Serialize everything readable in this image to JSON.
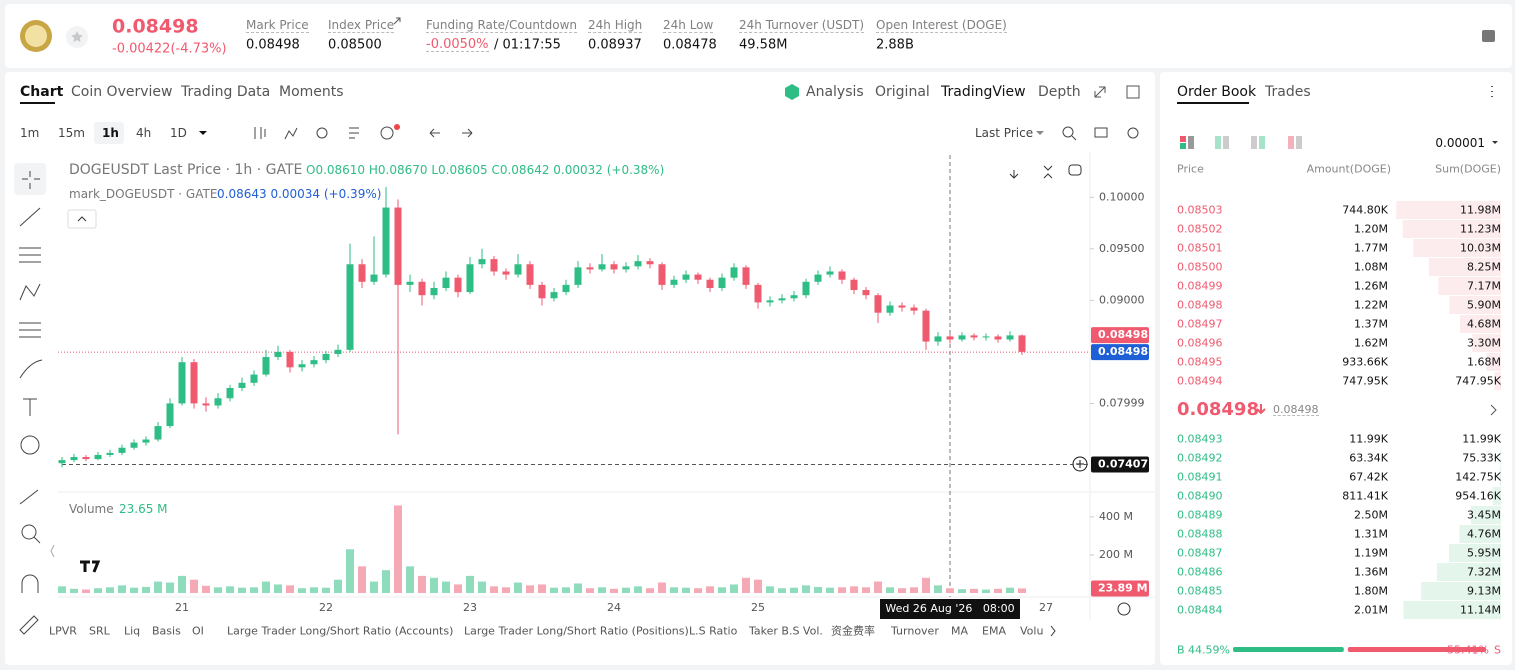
{
  "header": {
    "price": "0.08498",
    "change": "-0.00422(-4.73%)",
    "stats": [
      {
        "label": "Mark Price",
        "value": "0.08498"
      },
      {
        "label": "Index Price",
        "value": "0.08500"
      },
      {
        "label": "Funding Rate/Countdown",
        "value": "-0.0050%",
        "extra": "/ 01:17:55"
      },
      {
        "label": "24h High",
        "value": "0.08937"
      },
      {
        "label": "24h Low",
        "value": "0.08478"
      },
      {
        "label": "24h Turnover (USDT)",
        "value": "49.58M"
      },
      {
        "label": "Open Interest (DOGE)",
        "value": "2.88B"
      }
    ]
  },
  "chart_tabs": [
    "Chart",
    "Coin Overview",
    "Trading Data",
    "Moments"
  ],
  "view_tabs": [
    "Analysis",
    "Original",
    "TradingView",
    "Depth"
  ],
  "intervals": [
    "1m",
    "15m",
    "1h",
    "4h",
    "1D"
  ],
  "selected_interval": "1h",
  "price_source": "Last Price",
  "chart_data": {
    "type": "candlestick",
    "legend_title": "DOGEUSDT Last Price · 1h · GATE",
    "legend_ohlc": "O0.08610 H0.08670 L0.08605 C0.08642 0.00032 (+0.38%)",
    "legend_mark": "mark_DOGEUSDT · GATE",
    "legend_mark_values": "0.08643 0.00034 (+0.39%)",
    "up_color": "#2ebd85",
    "down_color": "#ef5a6f",
    "ylim": [
      0.0716,
      0.1041
    ],
    "yticks": [
      {
        "value": 0.1,
        "label": "0.10000"
      },
      {
        "value": 0.095,
        "label": "0.09500"
      },
      {
        "value": 0.09,
        "label": "0.09000"
      },
      0.07999
    ],
    "last_price": 0.08498,
    "mark_price": 0.08498,
    "crosshair_price": 0.07407,
    "crosshair_time": "Wed 26 Aug '26   08:00",
    "xtick_labels": [
      "21",
      "22",
      "23",
      "24",
      "25",
      "27"
    ],
    "candles": [
      [
        0.0742,
        0.0748,
        0.0738,
        0.0745
      ],
      [
        0.0745,
        0.0751,
        0.0743,
        0.0748
      ],
      [
        0.0748,
        0.075,
        0.0744,
        0.0746
      ],
      [
        0.0746,
        0.0753,
        0.0745,
        0.075
      ],
      [
        0.075,
        0.0755,
        0.0748,
        0.0752
      ],
      [
        0.0752,
        0.076,
        0.075,
        0.0757
      ],
      [
        0.0757,
        0.0765,
        0.0755,
        0.0762
      ],
      [
        0.0762,
        0.0768,
        0.0759,
        0.0765
      ],
      [
        0.0765,
        0.0782,
        0.0763,
        0.0778
      ],
      [
        0.0778,
        0.0805,
        0.0776,
        0.08
      ],
      [
        0.08,
        0.0845,
        0.0798,
        0.084
      ],
      [
        0.084,
        0.0843,
        0.0795,
        0.08
      ],
      [
        0.08,
        0.0806,
        0.0792,
        0.0798
      ],
      [
        0.0798,
        0.081,
        0.0795,
        0.0805
      ],
      [
        0.0805,
        0.0818,
        0.0802,
        0.0815
      ],
      [
        0.0815,
        0.0825,
        0.0812,
        0.082
      ],
      [
        0.082,
        0.0832,
        0.0817,
        0.0828
      ],
      [
        0.0828,
        0.0852,
        0.0826,
        0.0845
      ],
      [
        0.0845,
        0.0856,
        0.0842,
        0.085
      ],
      [
        0.085,
        0.0852,
        0.083,
        0.0835
      ],
      [
        0.0835,
        0.0842,
        0.0831,
        0.0838
      ],
      [
        0.0838,
        0.0846,
        0.0835,
        0.0842
      ],
      [
        0.0842,
        0.0851,
        0.0839,
        0.0848
      ],
      [
        0.0848,
        0.0857,
        0.0845,
        0.0852
      ],
      [
        0.0852,
        0.0955,
        0.085,
        0.0935
      ],
      [
        0.0935,
        0.094,
        0.0912,
        0.0918
      ],
      [
        0.0918,
        0.0962,
        0.0915,
        0.0925
      ],
      [
        0.0925,
        0.101,
        0.0922,
        0.099
      ],
      [
        0.099,
        0.0998,
        0.077,
        0.0915
      ],
      [
        0.0915,
        0.0925,
        0.0908,
        0.0918
      ],
      [
        0.0918,
        0.0921,
        0.0895,
        0.0905
      ],
      [
        0.0905,
        0.0918,
        0.0901,
        0.0912
      ],
      [
        0.0912,
        0.0928,
        0.0909,
        0.0922
      ],
      [
        0.0922,
        0.0925,
        0.0903,
        0.0908
      ],
      [
        0.0908,
        0.0942,
        0.0906,
        0.0935
      ],
      [
        0.0935,
        0.095,
        0.0931,
        0.094
      ],
      [
        0.094,
        0.0943,
        0.0924,
        0.0928
      ],
      [
        0.0928,
        0.0931,
        0.092,
        0.0925
      ],
      [
        0.0925,
        0.0945,
        0.0922,
        0.0935
      ],
      [
        0.0935,
        0.0938,
        0.0911,
        0.0915
      ],
      [
        0.0915,
        0.0918,
        0.0895,
        0.0902
      ],
      [
        0.0902,
        0.0912,
        0.0899,
        0.0908
      ],
      [
        0.0908,
        0.092,
        0.0905,
        0.0915
      ],
      [
        0.0915,
        0.0938,
        0.0912,
        0.0932
      ],
      [
        0.0932,
        0.0936,
        0.0926,
        0.093
      ],
      [
        0.093,
        0.0945,
        0.0928,
        0.0935
      ],
      [
        0.0935,
        0.0938,
        0.0926,
        0.093
      ],
      [
        0.093,
        0.0937,
        0.0927,
        0.0933
      ],
      [
        0.0933,
        0.0944,
        0.093,
        0.0938
      ],
      [
        0.0938,
        0.0941,
        0.0931,
        0.0935
      ],
      [
        0.0935,
        0.0937,
        0.091,
        0.0915
      ],
      [
        0.0915,
        0.0924,
        0.0912,
        0.092
      ],
      [
        0.092,
        0.0929,
        0.0917,
        0.0925
      ],
      [
        0.0925,
        0.0927,
        0.0916,
        0.092
      ],
      [
        0.092,
        0.0922,
        0.0908,
        0.0912
      ],
      [
        0.0912,
        0.0926,
        0.0909,
        0.0922
      ],
      [
        0.0922,
        0.0936,
        0.0919,
        0.0932
      ],
      [
        0.0932,
        0.0934,
        0.0911,
        0.0915
      ],
      [
        0.0915,
        0.0917,
        0.0892,
        0.0898
      ],
      [
        0.0898,
        0.0904,
        0.0894,
        0.09
      ],
      [
        0.09,
        0.0906,
        0.0897,
        0.0902
      ],
      [
        0.0902,
        0.0909,
        0.0899,
        0.0905
      ],
      [
        0.0905,
        0.0921,
        0.0902,
        0.0918
      ],
      [
        0.0918,
        0.0929,
        0.0915,
        0.0925
      ],
      [
        0.0925,
        0.0933,
        0.0922,
        0.0928
      ],
      [
        0.0928,
        0.093,
        0.0916,
        0.092
      ],
      [
        0.092,
        0.0922,
        0.0906,
        0.091
      ],
      [
        0.091,
        0.0913,
        0.0901,
        0.0905
      ],
      [
        0.0905,
        0.0907,
        0.0878,
        0.0888
      ],
      [
        0.0888,
        0.0899,
        0.0885,
        0.0895
      ],
      [
        0.0895,
        0.0898,
        0.0889,
        0.0893
      ],
      [
        0.0893,
        0.0896,
        0.0886,
        0.089
      ],
      [
        0.089,
        0.0892,
        0.0852,
        0.086
      ],
      [
        0.086,
        0.0869,
        0.0856,
        0.0865
      ],
      [
        0.0865,
        0.0868,
        0.0858,
        0.0862
      ],
      [
        0.0862,
        0.0869,
        0.086,
        0.0866
      ],
      [
        0.0866,
        0.0868,
        0.0861,
        0.0864
      ],
      [
        0.0864,
        0.0868,
        0.0861,
        0.0865
      ],
      [
        0.0865,
        0.0867,
        0.0859,
        0.0862
      ],
      [
        0.0862,
        0.087,
        0.086,
        0.0866
      ],
      [
        0.0866,
        0.0867,
        0.0847,
        0.085
      ]
    ],
    "volume_title": "Volume",
    "volume_value": "23.65 M",
    "vlim": [
      0,
      515
    ],
    "vticks": [
      {
        "value": 200,
        "label": "200 M"
      },
      {
        "value": 400,
        "label": "400 M"
      }
    ],
    "volumes": [
      35,
      22,
      18,
      25,
      30,
      40,
      28,
      32,
      60,
      55,
      90,
      70,
      38,
      30,
      35,
      28,
      30,
      60,
      45,
      40,
      25,
      30,
      28,
      70,
      230,
      140,
      60,
      120,
      460,
      140,
      90,
      80,
      60,
      45,
      90,
      60,
      35,
      30,
      55,
      40,
      45,
      28,
      30,
      50,
      25,
      30,
      22,
      28,
      35,
      25,
      55,
      30,
      28,
      25,
      35,
      30,
      45,
      80,
      70,
      35,
      25,
      28,
      40,
      32,
      28,
      30,
      35,
      30,
      60,
      30,
      25,
      30,
      80,
      40,
      25,
      20,
      22,
      18,
      22,
      28,
      24
    ],
    "current_volume": 23.89,
    "current_volume_label": "23.89 M"
  },
  "indicators": [
    "LPVR",
    "SRL",
    "Liq",
    "Basis",
    "OI",
    "Large Trader Long/Short Ratio (Accounts)",
    "Large Trader Long/Short Ratio (Positions)",
    "L.S Ratio",
    "Taker B.S Vol.",
    "资金费率",
    "Turnover",
    "MA",
    "EMA",
    "Volu"
  ],
  "order_book": {
    "tabs": [
      "Order Book",
      "Trades"
    ],
    "precision": "0.00001",
    "columns": [
      "Price",
      "Amount(DOGE)",
      "Sum(DOGE)"
    ],
    "asks": [
      [
        "0.08503",
        "744.80K",
        "11.98M"
      ],
      [
        "0.08502",
        "1.20M",
        "11.23M"
      ],
      [
        "0.08501",
        "1.77M",
        "10.03M"
      ],
      [
        "0.08500",
        "1.08M",
        "8.25M"
      ],
      [
        "0.08499",
        "1.26M",
        "7.17M"
      ],
      [
        "0.08498",
        "1.22M",
        "5.90M"
      ],
      [
        "0.08497",
        "1.37M",
        "4.68M"
      ],
      [
        "0.08496",
        "1.62M",
        "3.30M"
      ],
      [
        "0.08495",
        "933.66K",
        "1.68M"
      ],
      [
        "0.08494",
        "747.95K",
        "747.95K"
      ]
    ],
    "mid_price": "0.08498",
    "mid_mark": "0.08498",
    "bids": [
      [
        "0.08493",
        "11.99K",
        "11.99K"
      ],
      [
        "0.08492",
        "63.34K",
        "75.33K"
      ],
      [
        "0.08491",
        "67.42K",
        "142.75K"
      ],
      [
        "0.08490",
        "811.41K",
        "954.16K"
      ],
      [
        "0.08489",
        "2.50M",
        "3.45M"
      ],
      [
        "0.08488",
        "1.31M",
        "4.76M"
      ],
      [
        "0.08487",
        "1.19M",
        "5.95M"
      ],
      [
        "0.08486",
        "1.36M",
        "7.32M"
      ],
      [
        "0.08485",
        "1.80M",
        "9.13M"
      ],
      [
        "0.08484",
        "2.01M",
        "11.14M"
      ]
    ],
    "buy_label": "B",
    "buy_ratio": "44.59%",
    "sell_ratio": "55.41%",
    "sell_label": "S"
  }
}
